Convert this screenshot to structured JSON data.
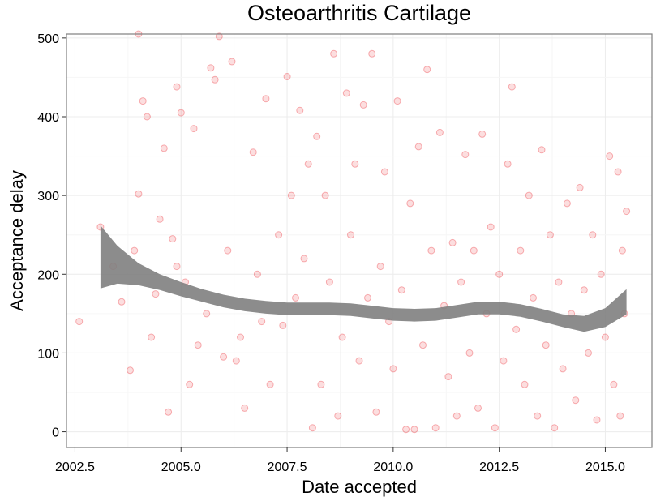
{
  "chart_data": {
    "type": "scatter",
    "title": "Osteoarthritis Cartilage",
    "xlabel": "Date accepted",
    "ylabel": "Acceptance delay",
    "xlim": [
      2002.3,
      2016.1
    ],
    "ylim": [
      -20,
      505
    ],
    "x_ticks": [
      2002.5,
      2005.0,
      2007.5,
      2010.0,
      2012.5,
      2015.0
    ],
    "x_tick_labels": [
      "2002.5",
      "2005.0",
      "2007.5",
      "2010.0",
      "2012.5",
      "2015.0"
    ],
    "y_ticks": [
      0,
      100,
      200,
      300,
      400,
      500
    ],
    "y_tick_labels": [
      "0",
      "100",
      "200",
      "300",
      "400",
      "500"
    ],
    "grid": true,
    "point_color": "#e8141c",
    "band_color": "#808080",
    "points": [
      [
        2002.6,
        140
      ],
      [
        2003.1,
        260
      ],
      [
        2003.4,
        210
      ],
      [
        2003.6,
        165
      ],
      [
        2003.8,
        78
      ],
      [
        2003.9,
        230
      ],
      [
        2004.0,
        302
      ],
      [
        2004.0,
        505
      ],
      [
        2004.1,
        420
      ],
      [
        2004.2,
        400
      ],
      [
        2004.3,
        120
      ],
      [
        2004.4,
        175
      ],
      [
        2004.5,
        270
      ],
      [
        2004.6,
        360
      ],
      [
        2004.7,
        25
      ],
      [
        2004.8,
        245
      ],
      [
        2004.9,
        210
      ],
      [
        2004.9,
        438
      ],
      [
        2005.0,
        405
      ],
      [
        2005.1,
        190
      ],
      [
        2005.2,
        60
      ],
      [
        2005.3,
        385
      ],
      [
        2005.4,
        110
      ],
      [
        2005.6,
        150
      ],
      [
        2005.7,
        462
      ],
      [
        2005.8,
        447
      ],
      [
        2005.9,
        502
      ],
      [
        2006.0,
        95
      ],
      [
        2006.1,
        230
      ],
      [
        2006.2,
        470
      ],
      [
        2006.3,
        90
      ],
      [
        2006.4,
        120
      ],
      [
        2006.5,
        30
      ],
      [
        2006.7,
        355
      ],
      [
        2006.8,
        200
      ],
      [
        2006.9,
        140
      ],
      [
        2007.0,
        423
      ],
      [
        2007.1,
        60
      ],
      [
        2007.3,
        250
      ],
      [
        2007.4,
        135
      ],
      [
        2007.5,
        451
      ],
      [
        2007.6,
        300
      ],
      [
        2007.7,
        170
      ],
      [
        2007.8,
        408
      ],
      [
        2007.9,
        220
      ],
      [
        2008.0,
        340
      ],
      [
        2008.1,
        5
      ],
      [
        2008.2,
        375
      ],
      [
        2008.3,
        60
      ],
      [
        2008.4,
        300
      ],
      [
        2008.5,
        190
      ],
      [
        2008.6,
        480
      ],
      [
        2008.7,
        20
      ],
      [
        2008.8,
        120
      ],
      [
        2008.9,
        430
      ],
      [
        2009.0,
        250
      ],
      [
        2009.1,
        340
      ],
      [
        2009.2,
        90
      ],
      [
        2009.3,
        415
      ],
      [
        2009.4,
        170
      ],
      [
        2009.5,
        480
      ],
      [
        2009.6,
        25
      ],
      [
        2009.7,
        210
      ],
      [
        2009.8,
        330
      ],
      [
        2009.9,
        140
      ],
      [
        2010.0,
        80
      ],
      [
        2010.1,
        420
      ],
      [
        2010.2,
        180
      ],
      [
        2010.3,
        3
      ],
      [
        2010.4,
        290
      ],
      [
        2010.5,
        3
      ],
      [
        2010.6,
        362
      ],
      [
        2010.7,
        110
      ],
      [
        2010.8,
        460
      ],
      [
        2010.9,
        230
      ],
      [
        2011.0,
        5
      ],
      [
        2011.1,
        380
      ],
      [
        2011.2,
        160
      ],
      [
        2011.3,
        70
      ],
      [
        2011.4,
        240
      ],
      [
        2011.5,
        20
      ],
      [
        2011.6,
        190
      ],
      [
        2011.7,
        352
      ],
      [
        2011.8,
        100
      ],
      [
        2011.9,
        230
      ],
      [
        2012.0,
        30
      ],
      [
        2012.1,
        378
      ],
      [
        2012.2,
        150
      ],
      [
        2012.3,
        260
      ],
      [
        2012.4,
        5
      ],
      [
        2012.5,
        200
      ],
      [
        2012.6,
        90
      ],
      [
        2012.7,
        340
      ],
      [
        2012.8,
        438
      ],
      [
        2012.9,
        130
      ],
      [
        2013.0,
        230
      ],
      [
        2013.1,
        60
      ],
      [
        2013.2,
        300
      ],
      [
        2013.3,
        170
      ],
      [
        2013.4,
        20
      ],
      [
        2013.5,
        358
      ],
      [
        2013.6,
        110
      ],
      [
        2013.7,
        250
      ],
      [
        2013.8,
        5
      ],
      [
        2013.9,
        190
      ],
      [
        2014.0,
        80
      ],
      [
        2014.1,
        290
      ],
      [
        2014.2,
        150
      ],
      [
        2014.3,
        40
      ],
      [
        2014.4,
        310
      ],
      [
        2014.5,
        180
      ],
      [
        2014.6,
        100
      ],
      [
        2014.7,
        250
      ],
      [
        2014.8,
        15
      ],
      [
        2014.9,
        200
      ],
      [
        2015.0,
        120
      ],
      [
        2015.1,
        350
      ],
      [
        2015.2,
        60
      ],
      [
        2015.3,
        330
      ],
      [
        2015.35,
        20
      ],
      [
        2015.4,
        230
      ],
      [
        2015.45,
        150
      ],
      [
        2015.5,
        280
      ]
    ],
    "smooth": {
      "x": [
        2003.1,
        2003.5,
        2004.0,
        2004.5,
        2005.0,
        2005.5,
        2006.0,
        2006.5,
        2007.0,
        2007.5,
        2008.0,
        2008.5,
        2009.0,
        2009.5,
        2010.0,
        2010.5,
        2011.0,
        2011.5,
        2012.0,
        2012.5,
        2013.0,
        2013.5,
        2014.0,
        2014.5,
        2015.0,
        2015.5
      ],
      "y": [
        222,
        212,
        200,
        190,
        181,
        173,
        166,
        161,
        158,
        156,
        156,
        156,
        155,
        152,
        149,
        148,
        149,
        153,
        157,
        157,
        154,
        148,
        141,
        137,
        145,
        165
      ],
      "se": [
        40,
        24,
        14,
        10,
        9,
        8,
        8,
        8,
        8,
        8,
        8,
        8,
        8,
        8,
        8,
        8,
        8,
        8,
        8,
        8,
        8,
        8,
        8,
        10,
        12,
        16
      ]
    }
  }
}
